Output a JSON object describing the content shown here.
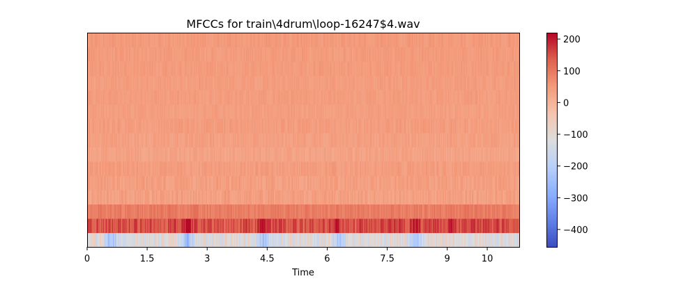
{
  "chart_data": {
    "type": "heatmap",
    "title": "MFCCs for train\\4drum\\loop-16247$4.wav",
    "xlabel": "Time",
    "ylabel": "",
    "x_ticks": [
      0,
      1.5,
      3,
      4.5,
      6,
      7.5,
      9,
      10
    ],
    "x_tick_labels": [
      "0",
      "1.5",
      "3",
      "4.5",
      "6",
      "7.5",
      "9",
      "10"
    ],
    "xlim": [
      0,
      10.8
    ],
    "n_coefficients": 15,
    "n_frames": 465,
    "y_ticks": [],
    "colormap": "coolwarm",
    "colorbar": {
      "vmin": -455,
      "vmax": 220,
      "ticks": [
        200,
        100,
        0,
        -100,
        -200,
        -300,
        -400
      ],
      "tick_labels": [
        "200",
        "100",
        "0",
        "−100",
        "−200",
        "−300",
        "−400"
      ]
    },
    "coefficient_profiles": [
      {
        "coefficient": 0,
        "mean": -110,
        "variation": 55,
        "dips_at_seconds": [
          0.6,
          2.5,
          4.4,
          6.3,
          8.2
        ]
      },
      {
        "coefficient": 1,
        "mean": 150,
        "variation": 40,
        "peaks_at_seconds": [
          2.5,
          4.4,
          6.2,
          8.2,
          9.1
        ]
      },
      {
        "coefficient": 2,
        "mean": 95,
        "variation": 20
      },
      {
        "coefficient": 3,
        "mean": 40,
        "variation": 20
      },
      {
        "coefficient": 4,
        "mean": 40,
        "variation": 18
      },
      {
        "coefficient": 5,
        "mean": 45,
        "variation": 15
      },
      {
        "coefficient": 6,
        "mean": 35,
        "variation": 15
      },
      {
        "coefficient": 7,
        "mean": 40,
        "variation": 15
      },
      {
        "coefficient": 8,
        "mean": 45,
        "variation": 15
      },
      {
        "coefficient": 9,
        "mean": 42,
        "variation": 12
      },
      {
        "coefficient": 10,
        "mean": 45,
        "variation": 12
      },
      {
        "coefficient": 11,
        "mean": 45,
        "variation": 12
      },
      {
        "coefficient": 12,
        "mean": 48,
        "variation": 12
      },
      {
        "coefficient": 13,
        "mean": 48,
        "variation": 12
      },
      {
        "coefficient": 14,
        "mean": 50,
        "variation": 12
      }
    ],
    "grid": false,
    "legend": "colorbar-right"
  }
}
